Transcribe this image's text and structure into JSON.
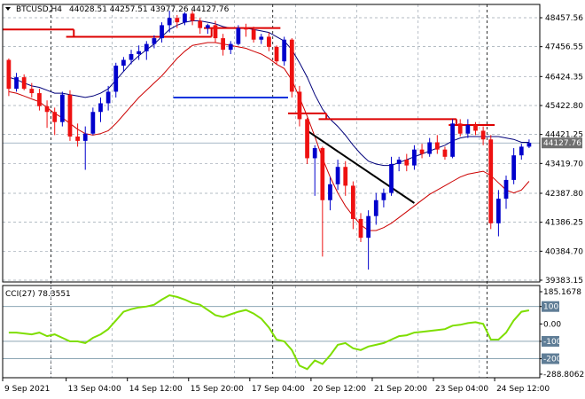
{
  "chart_data": [
    {
      "type": "candlestick",
      "symbol_label": "BTCUSD,H4",
      "ohlc_label": "44028.51 44257.51 43977.26 44127.76",
      "last_price": 44127.76,
      "last_price_label": "44127.76",
      "ylim": [
        39383.15,
        48457.56
      ],
      "y_ticks": [
        "48457.56",
        "47456.55",
        "46424.35",
        "45422.80",
        "44421.25",
        "43419.70",
        "42387.80",
        "41386.25",
        "40384.70",
        "39383.15"
      ],
      "x_ticks": [
        "9 Sep 2021",
        "13 Sep 04:00",
        "14 Sep 12:00",
        "15 Sep 20:00",
        "17 Sep 04:00",
        "20 Sep 12:00",
        "21 Sep 20:00",
        "23 Sep 04:00",
        "24 Sep 12:00"
      ],
      "colors": {
        "bull": "#0000cc",
        "bear": "#ee1111",
        "upper_band": "#00007a",
        "lower_band": "#cc0000",
        "resistance": "#dd0000",
        "support": "#0033dd",
        "trendline": "#000000",
        "grid": "#9aa5b0"
      },
      "candles": [
        [
          47000,
          47050,
          45750,
          46000
        ],
        [
          46000,
          46550,
          45900,
          46400
        ],
        [
          46400,
          46500,
          45950,
          46000
        ],
        [
          46000,
          46200,
          45700,
          45850
        ],
        [
          45850,
          46000,
          45250,
          45400
        ],
        [
          45400,
          45600,
          44650,
          45200
        ],
        [
          45200,
          45350,
          44400,
          44850
        ],
        [
          44850,
          45900,
          44700,
          45800
        ],
        [
          45800,
          45950,
          44200,
          44350
        ],
        [
          44350,
          44800,
          44000,
          44200
        ],
        [
          44200,
          44700,
          43200,
          44450
        ],
        [
          44450,
          45350,
          44400,
          45200
        ],
        [
          45200,
          45700,
          44850,
          45500
        ],
        [
          45500,
          46100,
          45250,
          45900
        ],
        [
          45900,
          46900,
          45700,
          46800
        ],
        [
          46800,
          47100,
          46600,
          47000
        ],
        [
          47000,
          47350,
          46850,
          47200
        ],
        [
          47200,
          47500,
          47000,
          47300
        ],
        [
          47300,
          47650,
          47000,
          47550
        ],
        [
          47550,
          47850,
          47400,
          47750
        ],
        [
          47750,
          48300,
          47600,
          48200
        ],
        [
          48200,
          48700,
          47950,
          48450
        ],
        [
          48450,
          48550,
          48100,
          48300
        ],
        [
          48300,
          48650,
          48200,
          48600
        ],
        [
          48600,
          48700,
          48200,
          48350
        ],
        [
          48350,
          48450,
          47900,
          48100
        ],
        [
          48100,
          48250,
          47900,
          48200
        ],
        [
          48200,
          48350,
          47600,
          47750
        ],
        [
          47750,
          47900,
          47150,
          47350
        ],
        [
          47350,
          47650,
          47200,
          47550
        ],
        [
          47550,
          48200,
          47500,
          48100
        ],
        [
          48100,
          48250,
          47800,
          48050
        ],
        [
          48050,
          48150,
          47600,
          47700
        ],
        [
          47700,
          47900,
          47550,
          47800
        ],
        [
          47800,
          47950,
          47300,
          47450
        ],
        [
          47450,
          47500,
          46850,
          46950
        ],
        [
          46950,
          47800,
          46800,
          47700
        ],
        [
          47700,
          47750,
          45700,
          45900
        ],
        [
          45900,
          46100,
          44700,
          44950
        ],
        [
          44950,
          45000,
          43400,
          43600
        ],
        [
          43600,
          44050,
          42300,
          43950
        ],
        [
          43950,
          44000,
          40200,
          42150
        ],
        [
          42150,
          42950,
          41800,
          42700
        ],
        [
          42700,
          43550,
          42500,
          43300
        ],
        [
          43300,
          43500,
          42300,
          42650
        ],
        [
          42650,
          42800,
          41150,
          41500
        ],
        [
          41500,
          41700,
          40700,
          40850
        ],
        [
          40850,
          41800,
          39750,
          41600
        ],
        [
          41600,
          42400,
          41300,
          42150
        ],
        [
          42150,
          42550,
          41900,
          42400
        ],
        [
          42400,
          43650,
          42300,
          43400
        ],
        [
          43400,
          43650,
          43150,
          43550
        ],
        [
          43550,
          43750,
          43150,
          43350
        ],
        [
          43350,
          44050,
          43200,
          43900
        ],
        [
          43900,
          44100,
          43600,
          43750
        ],
        [
          43750,
          44300,
          43650,
          44150
        ],
        [
          44150,
          44400,
          43750,
          43900
        ],
        [
          43900,
          44000,
          43550,
          43650
        ],
        [
          43650,
          44950,
          43600,
          44800
        ],
        [
          44800,
          44950,
          44350,
          44450
        ],
        [
          44450,
          44950,
          44300,
          44750
        ],
        [
          44750,
          44850,
          44400,
          44550
        ],
        [
          44550,
          44700,
          44050,
          44250
        ],
        [
          44250,
          44400,
          41150,
          41350
        ],
        [
          41350,
          42500,
          40900,
          42200
        ],
        [
          42200,
          43000,
          41850,
          42850
        ],
        [
          42850,
          43950,
          42700,
          43700
        ],
        [
          43700,
          44100,
          43550,
          44000
        ],
        [
          44000,
          44250,
          43950,
          44128
        ]
      ],
      "upper_band": [
        46400,
        46320,
        46200,
        46100,
        46050,
        45950,
        45850,
        45850,
        45800,
        45750,
        45700,
        45750,
        45850,
        46000,
        46300,
        46600,
        46900,
        47150,
        47350,
        47550,
        47800,
        48050,
        48200,
        48300,
        48350,
        48350,
        48300,
        48250,
        48150,
        48100,
        48100,
        48100,
        48050,
        48000,
        47950,
        47800,
        47650,
        47350,
        46900,
        46400,
        45800,
        45300,
        44950,
        44700,
        44400,
        44050,
        43750,
        43500,
        43400,
        43350,
        43350,
        43450,
        43550,
        43650,
        43750,
        43850,
        43950,
        44050,
        44200,
        44300,
        44350,
        44350,
        44350,
        44350,
        44350,
        44300,
        44250,
        44150,
        44150
      ],
      "lower_band": [
        45900,
        45850,
        45750,
        45650,
        45550,
        45350,
        45150,
        45000,
        44800,
        44600,
        44450,
        44400,
        44450,
        44550,
        44800,
        45100,
        45400,
        45700,
        45950,
        46200,
        46450,
        46750,
        47050,
        47300,
        47500,
        47550,
        47600,
        47600,
        47550,
        47500,
        47450,
        47400,
        47300,
        47200,
        47050,
        46850,
        46700,
        46300,
        45700,
        45050,
        44350,
        43600,
        42950,
        42400,
        41950,
        41600,
        41300,
        41100,
        41100,
        41200,
        41350,
        41550,
        41750,
        41950,
        42150,
        42350,
        42500,
        42650,
        42800,
        42950,
        43050,
        43100,
        43150,
        43000,
        42750,
        42500,
        42400,
        42500,
        42800
      ],
      "resistance_steps": [
        {
          "from": 0,
          "to": 8,
          "price": 48050
        },
        {
          "from": 8,
          "to": 26,
          "price": 47800
        },
        {
          "from": 26,
          "to": 35,
          "price": 48100
        },
        {
          "from": 37,
          "to": 41,
          "price": 45150
        },
        {
          "from": 41,
          "to": 58,
          "price": 44950
        },
        {
          "from": 58,
          "to": 63,
          "price": 44750
        }
      ],
      "support_steps": [
        {
          "from": 22,
          "to": 36,
          "price": 45700
        }
      ],
      "trendline": {
        "from": 39,
        "from_price": 44550,
        "to": 53,
        "to_price": 42050
      }
    },
    {
      "type": "line",
      "label": "CCI(27) 78.3551",
      "ylim": [
        -288.8062,
        185.1678
      ],
      "y_ticks": [
        "185.1678",
        "100",
        "0.00",
        "-100",
        "-200",
        "-288.8062"
      ],
      "levels": [
        100,
        -100,
        -200
      ],
      "highlighted_ticks": [
        "100",
        "-100",
        "-200"
      ],
      "line_color": "#7ede00",
      "values": [
        -50,
        -50,
        -55,
        -60,
        -50,
        -70,
        -60,
        -80,
        -100,
        -100,
        -110,
        -80,
        -60,
        -30,
        20,
        70,
        85,
        95,
        100,
        110,
        140,
        165,
        155,
        140,
        120,
        110,
        80,
        50,
        40,
        55,
        70,
        80,
        60,
        30,
        -20,
        -90,
        -100,
        -150,
        -240,
        -260,
        -210,
        -230,
        -180,
        -120,
        -110,
        -140,
        -150,
        -130,
        -120,
        -110,
        -90,
        -70,
        -65,
        -50,
        -45,
        -40,
        -35,
        -30,
        -10,
        -5,
        5,
        10,
        0,
        -90,
        -90,
        -50,
        20,
        70,
        78.3551
      ]
    }
  ]
}
